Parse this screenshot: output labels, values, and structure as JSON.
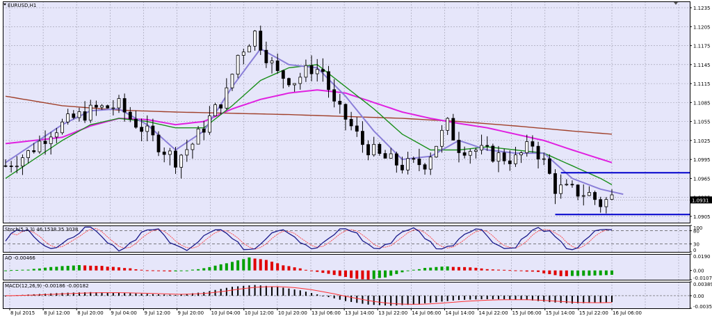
{
  "colors": {
    "plot_bg": "#E6E6FA",
    "grid": "#9A9AAA",
    "bull": "#FFFFFF",
    "bear": "#000000",
    "ma_fast": "#8A7FD8",
    "ma_green": "#1A8F1A",
    "ma_magenta": "#E020E0",
    "ma_brown": "#A0402A",
    "hline": "#0000CC",
    "stoch_main": "#1A1A8A",
    "stoch_signal": "#FF4040",
    "ao_up": "#00A000",
    "ao_down": "#E00000",
    "macd_hist": "#000000",
    "macd_signal": "#FF3030",
    "current_price_bg": "#000000"
  },
  "chart_data": [
    {
      "type": "candlestick",
      "title": "EURUSD,H1",
      "ylim": [
        1.0895,
        1.1245
      ],
      "yticks": [
        "1.1235",
        "1.1205",
        "1.1175",
        "1.1145",
        "1.1115",
        "1.1085",
        "1.1055",
        "1.1025",
        "1.0995",
        "1.0965",
        "1.0935",
        "1.0905"
      ],
      "current_price": "1.0931",
      "x_labels": [
        "8 Jul 2015",
        "8 Jul 12:00",
        "8 Jul 20:00",
        "9 Jul 04:00",
        "9 Jul 12:00",
        "9 Jul 20:00",
        "10 Jul 04:00",
        "10 Jul 12:00",
        "10 Jul 20:00",
        "13 Jul 06:00",
        "13 Jul 14:00",
        "13 Jul 22:00",
        "14 Jul 06:00",
        "14 Jul 14:00",
        "14 Jul 22:00",
        "15 Jul 06:00",
        "15 Jul 14:00",
        "15 Jul 22:00",
        "16 Jul 06:00"
      ],
      "horizontal_lines": [
        {
          "value": 1.0974,
          "from_bar": 98
        },
        {
          "value": 1.0908,
          "from_bar": 97
        }
      ],
      "anchors": [
        [
          0,
          1.0985
        ],
        [
          4,
          1.1005
        ],
        [
          8,
          1.104
        ],
        [
          12,
          1.106
        ],
        [
          16,
          1.1075
        ],
        [
          20,
          1.108
        ],
        [
          22,
          1.106
        ],
        [
          24,
          1.1045
        ],
        [
          28,
          1.101
        ],
        [
          30,
          1.0995
        ],
        [
          33,
          1.102
        ],
        [
          36,
          1.106
        ],
        [
          39,
          1.11
        ],
        [
          41,
          1.116
        ],
        [
          44,
          1.1195
        ],
        [
          46,
          1.116
        ],
        [
          48,
          1.113
        ],
        [
          51,
          1.112
        ],
        [
          54,
          1.114
        ],
        [
          56,
          1.1135
        ],
        [
          58,
          1.108
        ],
        [
          60,
          1.106
        ],
        [
          63,
          1.102
        ],
        [
          66,
          1.1
        ],
        [
          70,
          1.0985
        ],
        [
          74,
          1.099
        ],
        [
          76,
          1.102
        ],
        [
          78,
          1.105
        ],
        [
          80,
          1.1015
        ],
        [
          83,
          1.101
        ],
        [
          87,
          1.1
        ],
        [
          90,
          1.0995
        ],
        [
          93,
          1.102
        ],
        [
          95,
          1.099
        ],
        [
          97,
          1.095
        ],
        [
          100,
          1.0945
        ],
        [
          103,
          1.094
        ],
        [
          105,
          1.0925
        ],
        [
          107,
          1.0935
        ]
      ],
      "ma_fast": [
        [
          0,
          1.099
        ],
        [
          10,
          1.105
        ],
        [
          15,
          1.1072
        ],
        [
          20,
          1.1075
        ],
        [
          25,
          1.105
        ],
        [
          30,
          1.101
        ],
        [
          35,
          1.104
        ],
        [
          40,
          1.111
        ],
        [
          45,
          1.117
        ],
        [
          50,
          1.1145
        ],
        [
          55,
          1.114
        ],
        [
          60,
          1.1095
        ],
        [
          65,
          1.104
        ],
        [
          70,
          1.0995
        ],
        [
          75,
          1.1
        ],
        [
          80,
          1.1025
        ],
        [
          85,
          1.101
        ],
        [
          90,
          1.1005
        ],
        [
          95,
          1.1005
        ],
        [
          100,
          1.0965
        ],
        [
          105,
          1.0948
        ],
        [
          109,
          1.094
        ]
      ],
      "ma_green": [
        [
          0,
          1.0965
        ],
        [
          10,
          1.1025
        ],
        [
          15,
          1.105
        ],
        [
          20,
          1.106
        ],
        [
          25,
          1.1055
        ],
        [
          30,
          1.1045
        ],
        [
          35,
          1.1045
        ],
        [
          40,
          1.108
        ],
        [
          45,
          1.112
        ],
        [
          50,
          1.114
        ],
        [
          55,
          1.1145
        ],
        [
          60,
          1.111
        ],
        [
          65,
          1.1075
        ],
        [
          70,
          1.1035
        ],
        [
          75,
          1.101
        ],
        [
          80,
          1.101
        ],
        [
          85,
          1.1015
        ],
        [
          90,
          1.101
        ],
        [
          95,
          1.1005
        ],
        [
          100,
          1.0985
        ],
        [
          105,
          1.0965
        ],
        [
          107,
          1.0955
        ]
      ],
      "ma_magenta": [
        [
          0,
          1.102
        ],
        [
          10,
          1.103
        ],
        [
          15,
          1.1048
        ],
        [
          20,
          1.106
        ],
        [
          25,
          1.1058
        ],
        [
          30,
          1.105
        ],
        [
          35,
          1.1055
        ],
        [
          40,
          1.1075
        ],
        [
          45,
          1.109
        ],
        [
          50,
          1.11
        ],
        [
          55,
          1.1105
        ],
        [
          60,
          1.11
        ],
        [
          65,
          1.1085
        ],
        [
          70,
          1.107
        ],
        [
          75,
          1.106
        ],
        [
          80,
          1.1052
        ],
        [
          85,
          1.1045
        ],
        [
          90,
          1.1035
        ],
        [
          95,
          1.1025
        ],
        [
          100,
          1.101
        ],
        [
          107,
          1.099
        ]
      ],
      "ma_brown": [
        [
          0,
          1.1095
        ],
        [
          10,
          1.108
        ],
        [
          20,
          1.1073
        ],
        [
          30,
          1.107
        ],
        [
          40,
          1.1068
        ],
        [
          50,
          1.1066
        ],
        [
          60,
          1.1063
        ],
        [
          70,
          1.106
        ],
        [
          80,
          1.1055
        ],
        [
          90,
          1.1048
        ],
        [
          100,
          1.104
        ],
        [
          107,
          1.1035
        ]
      ]
    },
    {
      "type": "line",
      "title": "Stoch(5,3,3) 46.1538 35.3038",
      "ylim": [
        0,
        100
      ],
      "yticks": [
        "100",
        "80",
        "30",
        "0"
      ],
      "levels": [
        80,
        30
      ]
    },
    {
      "type": "bar",
      "title": "AO -0.00466",
      "ylim": [
        -0.0107,
        0.019
      ],
      "yticks": [
        "0.0190",
        "0.00",
        "-0.0107"
      ],
      "anchors": [
        [
          0,
          0.0
        ],
        [
          4,
          0.001
        ],
        [
          8,
          0.004
        ],
        [
          12,
          0.006
        ],
        [
          16,
          0.0055
        ],
        [
          20,
          0.0035
        ],
        [
          24,
          0.001
        ],
        [
          28,
          -0.001
        ],
        [
          32,
          -0.0005
        ],
        [
          36,
          0.004
        ],
        [
          40,
          0.01
        ],
        [
          43,
          0.015
        ],
        [
          46,
          0.012
        ],
        [
          49,
          0.006
        ],
        [
          53,
          0.001
        ],
        [
          57,
          -0.004
        ],
        [
          61,
          -0.009
        ],
        [
          64,
          -0.0105
        ],
        [
          67,
          -0.008
        ],
        [
          70,
          -0.002
        ],
        [
          74,
          0.003
        ],
        [
          78,
          0.0045
        ],
        [
          82,
          0.0035
        ],
        [
          86,
          0.001
        ],
        [
          90,
          0.0
        ],
        [
          94,
          -0.002
        ],
        [
          98,
          -0.0065
        ],
        [
          102,
          -0.006
        ],
        [
          107,
          -0.005
        ]
      ]
    },
    {
      "type": "bar",
      "title": "MACD(12,26,9) -0.00186 -0.00182",
      "ylim": [
        -0.00352,
        0.00389
      ],
      "yticks": [
        "0.00389",
        "0.00",
        "-0.00352"
      ],
      "anchors": [
        [
          0,
          0.0
        ],
        [
          5,
          0.0004
        ],
        [
          10,
          0.0008
        ],
        [
          15,
          0.001
        ],
        [
          20,
          0.0008
        ],
        [
          25,
          0.0005
        ],
        [
          30,
          0.0002
        ],
        [
          35,
          0.001
        ],
        [
          40,
          0.0025
        ],
        [
          44,
          0.003
        ],
        [
          48,
          0.0025
        ],
        [
          52,
          0.0015
        ],
        [
          56,
          0.0
        ],
        [
          60,
          -0.0015
        ],
        [
          64,
          -0.0025
        ],
        [
          68,
          -0.0028
        ],
        [
          72,
          -0.0025
        ],
        [
          76,
          -0.0018
        ],
        [
          80,
          -0.0012
        ],
        [
          84,
          -0.001
        ],
        [
          88,
          -0.001
        ],
        [
          92,
          -0.0012
        ],
        [
          96,
          -0.0018
        ],
        [
          100,
          -0.0022
        ],
        [
          104,
          -0.002
        ],
        [
          107,
          -0.0018
        ]
      ]
    }
  ]
}
